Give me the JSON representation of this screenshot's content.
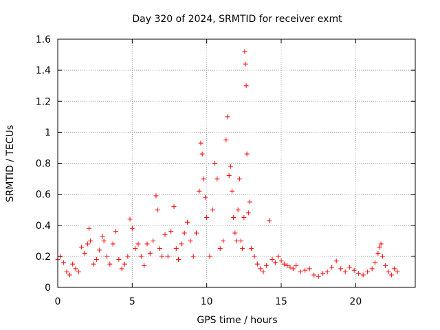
{
  "chart_data": {
    "type": "scatter",
    "title": "Day 320 of 2024, SRMTID for receiver exmt",
    "xlabel": "GPS time / hours",
    "ylabel": "SRMTID / TECUs",
    "xlim": [
      0,
      24
    ],
    "ylim": [
      0,
      1.6
    ],
    "xticks": [
      0,
      5,
      10,
      15,
      20
    ],
    "xtick_labels": [
      "0",
      "5",
      "10",
      "15",
      "20"
    ],
    "yticks": [
      0,
      0.2,
      0.4,
      0.6,
      0.8,
      1.0,
      1.2,
      1.4,
      1.6
    ],
    "ytick_labels": [
      "0",
      "0.2",
      "0.4",
      "0.6",
      "0.8",
      "1",
      "1.2",
      "1.4",
      "1.6"
    ],
    "grid": true,
    "marker": "plus",
    "color": "#ff0000",
    "series": [
      {
        "name": "SRMTID",
        "x": [
          0.0,
          0.2,
          0.4,
          0.6,
          0.8,
          1.0,
          1.2,
          1.4,
          1.6,
          1.8,
          2.0,
          2.1,
          2.2,
          2.4,
          2.6,
          2.8,
          3.0,
          3.1,
          3.3,
          3.5,
          3.7,
          3.9,
          4.1,
          4.3,
          4.5,
          4.7,
          4.85,
          5.0,
          5.2,
          5.4,
          5.6,
          5.8,
          6.0,
          6.2,
          6.4,
          6.6,
          6.7,
          6.85,
          7.0,
          7.2,
          7.4,
          7.6,
          7.8,
          7.95,
          8.1,
          8.3,
          8.5,
          8.7,
          8.9,
          9.1,
          9.3,
          9.5,
          9.6,
          9.7,
          9.8,
          9.9,
          10.0,
          10.2,
          10.4,
          10.55,
          10.7,
          10.9,
          11.1,
          11.3,
          11.4,
          11.5,
          11.6,
          11.7,
          11.8,
          11.9,
          12.0,
          12.1,
          12.2,
          12.3,
          12.4,
          12.5,
          12.55,
          12.6,
          12.65,
          12.7,
          12.8,
          12.9,
          13.0,
          13.2,
          13.4,
          13.6,
          13.8,
          14.0,
          14.2,
          14.4,
          14.6,
          14.8,
          15.0,
          15.2,
          15.4,
          15.6,
          15.8,
          16.0,
          16.3,
          16.6,
          16.9,
          17.2,
          17.5,
          17.8,
          18.1,
          18.4,
          18.7,
          19.0,
          19.3,
          19.6,
          19.9,
          20.2,
          20.5,
          20.8,
          21.1,
          21.3,
          21.5,
          21.6,
          21.7,
          21.8,
          22.0,
          22.2,
          22.4,
          22.6,
          22.8
        ],
        "y": [
          0.18,
          0.2,
          0.16,
          0.1,
          0.08,
          0.15,
          0.12,
          0.1,
          0.26,
          0.22,
          0.28,
          0.38,
          0.3,
          0.15,
          0.18,
          0.24,
          0.33,
          0.3,
          0.2,
          0.15,
          0.28,
          0.36,
          0.18,
          0.12,
          0.15,
          0.2,
          0.44,
          0.38,
          0.25,
          0.28,
          0.2,
          0.14,
          0.28,
          0.22,
          0.3,
          0.59,
          0.5,
          0.25,
          0.2,
          0.34,
          0.2,
          0.36,
          0.52,
          0.25,
          0.18,
          0.28,
          0.35,
          0.42,
          0.3,
          0.2,
          0.35,
          0.62,
          0.93,
          0.86,
          0.7,
          0.58,
          0.45,
          0.2,
          0.5,
          0.8,
          0.7,
          0.25,
          0.3,
          0.95,
          1.1,
          0.72,
          0.78,
          0.62,
          0.45,
          0.35,
          0.3,
          0.5,
          0.7,
          0.3,
          0.25,
          0.45,
          1.52,
          1.44,
          1.3,
          0.86,
          0.48,
          0.55,
          0.25,
          0.2,
          0.15,
          0.12,
          0.1,
          0.14,
          0.43,
          0.18,
          0.16,
          0.2,
          0.17,
          0.15,
          0.14,
          0.13,
          0.12,
          0.14,
          0.1,
          0.11,
          0.12,
          0.08,
          0.07,
          0.09,
          0.1,
          0.13,
          0.17,
          0.12,
          0.1,
          0.13,
          0.11,
          0.09,
          0.08,
          0.1,
          0.12,
          0.16,
          0.22,
          0.26,
          0.28,
          0.2,
          0.14,
          0.1,
          0.08,
          0.12,
          0.1
        ]
      }
    ]
  }
}
